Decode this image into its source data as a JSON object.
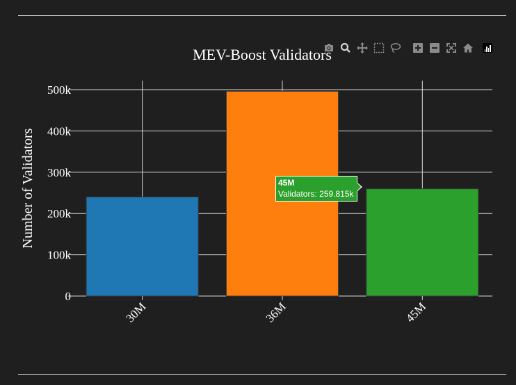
{
  "chart_data": {
    "type": "bar",
    "title": "MEV-Boost Validators",
    "xlabel": "",
    "ylabel": "Number of Validators",
    "categories": [
      "30M",
      "36M",
      "45M"
    ],
    "values": [
      240000,
      496000,
      259815
    ],
    "bar_colors": [
      "#1f77b4",
      "#ff7f0e",
      "#2ca02c"
    ],
    "ylim": [
      0,
      520000
    ],
    "yticks": [
      0,
      100000,
      200000,
      300000,
      400000,
      500000
    ],
    "ytick_labels": [
      "0",
      "100k",
      "200k",
      "300k",
      "400k",
      "500k"
    ],
    "grid": true,
    "legend": "none"
  },
  "tooltip": {
    "category": "45M",
    "text": "Validators: 259.815k",
    "color": "#2ca02c"
  },
  "theme": {
    "background": "#1f1f1f",
    "text": "#ffffff",
    "grid": "#d8d8d8"
  },
  "modebar": {
    "icons": [
      "camera-icon",
      "zoom-icon",
      "pan-icon",
      "box-select-icon",
      "lasso-icon",
      "zoom-in-icon",
      "zoom-out-icon",
      "autoscale-icon",
      "home-icon",
      "plotly-logo-icon"
    ]
  }
}
